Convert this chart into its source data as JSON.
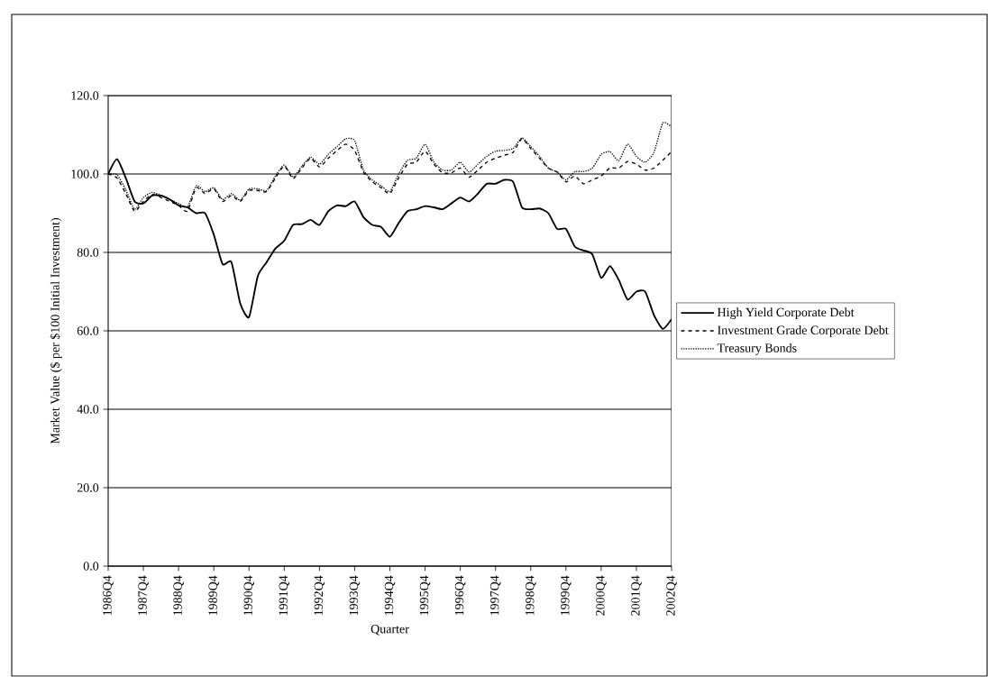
{
  "chart_data": {
    "type": "line",
    "xlabel": "Quarter",
    "ylabel": "Market Value ($ per $100 Initial Investment)",
    "categories": [
      "1986Q4",
      null,
      null,
      null,
      "1987Q4",
      null,
      null,
      null,
      "1988Q4",
      null,
      null,
      null,
      "1989Q4",
      null,
      null,
      null,
      "1990Q4",
      null,
      null,
      null,
      "1991Q4",
      null,
      null,
      null,
      "1992Q4",
      null,
      null,
      null,
      "1993Q4",
      null,
      null,
      null,
      "1994Q4",
      null,
      null,
      null,
      "1995Q4",
      null,
      null,
      null,
      "1996Q4",
      null,
      null,
      null,
      "1997Q4",
      null,
      null,
      null,
      "1998Q4",
      null,
      null,
      null,
      "1999Q4",
      null,
      null,
      null,
      "2000Q4",
      null,
      null,
      null,
      "2001Q4",
      null,
      null,
      null,
      "2002Q4"
    ],
    "series": [
      {
        "name": "High Yield Corporate Debt",
        "color": "#000000",
        "line_style": "solid",
        "values": [
          100,
          103.8,
          99,
          93,
          92.5,
          94.5,
          94.5,
          93.5,
          92,
          91.5,
          90,
          90,
          84.5,
          77,
          77.5,
          67,
          63.5,
          74,
          77.5,
          81,
          83,
          87,
          87.2,
          88.3,
          87,
          90.5,
          92,
          91.8,
          93,
          89,
          87,
          86.5,
          84,
          87.5,
          90.5,
          91,
          91.8,
          91.5,
          91,
          92.5,
          94,
          93,
          95,
          97.5,
          97.5,
          98.5,
          98,
          91.5,
          91,
          91.2,
          90,
          86,
          86,
          81.5,
          80.5,
          79.5,
          73.5,
          76.5,
          73,
          68,
          70,
          70,
          64,
          60.5,
          63
        ]
      },
      {
        "name": "Investment Grade Corporate Debt",
        "color": "#000000",
        "line_style": "dashed",
        "values": [
          100,
          99,
          95,
          90.5,
          93,
          94.8,
          94,
          93,
          92,
          90.5,
          96.5,
          95,
          96.2,
          93,
          94.5,
          93,
          95.8,
          95.8,
          95.5,
          99,
          102,
          98.8,
          101.5,
          104,
          101.8,
          104,
          106,
          107.6,
          106,
          100.5,
          98,
          96.5,
          95,
          99,
          102.5,
          103,
          105.8,
          102.5,
          100.3,
          100.3,
          101.5,
          99.2,
          101,
          103,
          104,
          104.8,
          105.5,
          109,
          106.5,
          104,
          101.5,
          100.5,
          98,
          99.5,
          97.5,
          98.5,
          99.5,
          101.5,
          101.5,
          103.2,
          102.5,
          101,
          101.5,
          103.5,
          105.7
        ]
      },
      {
        "name": "Treasury Bonds",
        "color": "#000000",
        "line_style": "dotted",
        "values": [
          100,
          99.8,
          96,
          91,
          94,
          95.3,
          94.5,
          93.5,
          92.5,
          91.5,
          97,
          95.5,
          96.5,
          93.5,
          95,
          93.3,
          96.2,
          96.2,
          95.8,
          99.5,
          102.3,
          99.2,
          102,
          104.3,
          102.5,
          105,
          107,
          109,
          108.5,
          101,
          98.5,
          97,
          95.5,
          100,
          103.5,
          104,
          107.6,
          103,
          101,
          101,
          103,
          100.5,
          102.5,
          104.5,
          105.8,
          106,
          106.5,
          109.2,
          107,
          104.5,
          101.5,
          100.5,
          98.5,
          100.6,
          100.6,
          101.5,
          105,
          105.7,
          103.4,
          107.6,
          104.5,
          103,
          105.5,
          113,
          112
        ]
      }
    ],
    "ylim": [
      0,
      120
    ],
    "yticks": [
      {
        "value": 0,
        "label": "0.0"
      },
      {
        "value": 20,
        "label": "20.0"
      },
      {
        "value": 40,
        "label": "40.0"
      },
      {
        "value": 60,
        "label": "60.0"
      },
      {
        "value": 80,
        "label": "80.0"
      },
      {
        "value": 100,
        "label": "100.0"
      },
      {
        "value": 120,
        "label": "120.0"
      }
    ],
    "grid": "y",
    "legend": "right"
  }
}
